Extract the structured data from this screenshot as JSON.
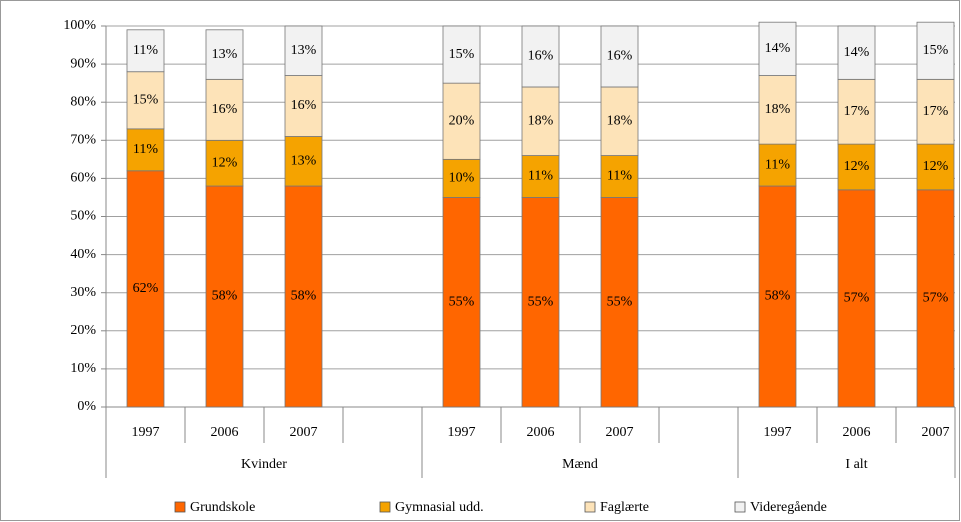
{
  "chart_data": {
    "type": "stacked_bar",
    "categories": [
      "1997",
      "2006",
      "2007",
      null,
      "1997",
      "2006",
      "2007",
      null,
      "1997",
      "2006",
      "2007"
    ],
    "groups": [
      "Kvinder",
      "Mænd",
      "I alt"
    ],
    "series": [
      {
        "name": "Grundskole",
        "color": "#ff6600",
        "values": [
          62,
          58,
          58,
          null,
          55,
          55,
          55,
          null,
          58,
          57,
          57
        ],
        "value_labels": [
          "62%",
          "58%",
          "58%",
          null,
          "55%",
          "55%",
          "55%",
          null,
          "58%",
          "57%",
          "57%"
        ]
      },
      {
        "name": "Gymnasial udd.",
        "color": "#f5a300",
        "values": [
          11,
          12,
          13,
          null,
          10,
          11,
          11,
          null,
          11,
          12,
          12
        ],
        "value_labels": [
          "11%",
          "12%",
          "13%",
          null,
          "10%",
          "11%",
          "11%",
          null,
          "11%",
          "12%",
          "12%"
        ]
      },
      {
        "name": "Faglærte",
        "color": "#fde3b8",
        "values": [
          15,
          16,
          16,
          null,
          20,
          18,
          18,
          null,
          18,
          17,
          17
        ],
        "value_labels": [
          "15%",
          "16%",
          "16%",
          null,
          "20%",
          "18%",
          "18%",
          null,
          "18%",
          "17%",
          "17%"
        ]
      },
      {
        "name": "Videregående",
        "color": "#f2f2f2",
        "values": [
          11,
          13,
          13,
          null,
          15,
          16,
          16,
          null,
          14,
          14,
          15
        ],
        "value_labels": [
          "11%",
          "13%",
          "13%",
          null,
          "15%",
          "16%",
          "16%",
          null,
          "14%",
          "14%",
          "15%"
        ]
      }
    ],
    "ylim": [
      0,
      100
    ],
    "yticks": [
      {
        "value": 0,
        "label": "0%"
      },
      {
        "value": 10,
        "label": "10%"
      },
      {
        "value": 20,
        "label": "20%"
      },
      {
        "value": 30,
        "label": "30%"
      },
      {
        "value": 40,
        "label": "40%"
      },
      {
        "value": 50,
        "label": "50%"
      },
      {
        "value": 60,
        "label": "60%"
      },
      {
        "value": 70,
        "label": "70%"
      },
      {
        "value": 80,
        "label": "80%"
      },
      {
        "value": 90,
        "label": "90%"
      },
      {
        "value": 100,
        "label": "100%"
      }
    ],
    "grid": true,
    "legend": "bottom"
  }
}
